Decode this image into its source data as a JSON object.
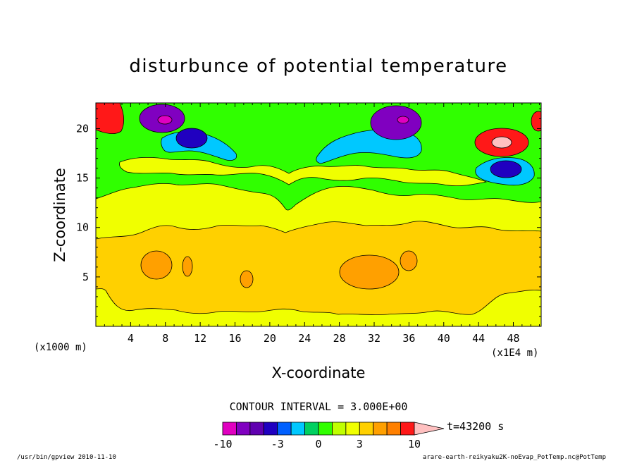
{
  "chart_data": {
    "type": "heatmap",
    "title": "disturbunce of potential temperature",
    "xlabel": "X-coordinate",
    "ylabel": "Z-coordinate",
    "x_unit_left": "(x1000 m)",
    "x_unit_right": "(x1E4 m)",
    "xlim": [
      0,
      51.2
    ],
    "ylim": [
      0,
      22.6
    ],
    "x_ticks": [
      "4",
      "8",
      "12",
      "16",
      "20",
      "24",
      "28",
      "32",
      "36",
      "40",
      "44",
      "48"
    ],
    "x_tick_values": [
      4,
      8,
      12,
      16,
      20,
      24,
      28,
      32,
      36,
      40,
      44,
      48
    ],
    "y_ticks": [
      "5",
      "10",
      "15",
      "20"
    ],
    "y_tick_values": [
      5,
      10,
      15,
      20
    ],
    "contour_interval_label": "CONTOUR INTERVAL = 3.000E+00",
    "time_label": "t=43200 s",
    "colorbar": {
      "levels": [
        -10,
        -8,
        -6,
        -4,
        -3,
        -2,
        -1,
        0,
        1,
        2,
        3,
        4,
        6,
        8,
        10
      ],
      "labels": [
        "-10",
        "-3",
        "0",
        "3",
        "10"
      ],
      "label_values": [
        -10,
        -3,
        0,
        3,
        10
      ],
      "colors": [
        "#e000c0",
        "#8000c0",
        "#6000b0",
        "#2000c0",
        "#0060ff",
        "#00c8ff",
        "#00d060",
        "#30ff00",
        "#c0ff00",
        "#f0ff00",
        "#ffd000",
        "#ffa000",
        "#ff8000",
        "#ff1818",
        "#ff7070",
        "#ffc0c0"
      ]
    },
    "band_colors": {
      "surface": "#f0ff00",
      "warm_layer": "#ffd000",
      "warm_core": "#ffa000",
      "cool_layer": "#30ff00",
      "blue": "#00c8ff",
      "dark_blue": "#2000c0",
      "purple": "#8000c0",
      "magenta": "#e000c0",
      "red": "#ff1818",
      "pink": "#ff7070",
      "light_pink": "#ffc0c0",
      "orange": "#ff8000"
    }
  },
  "footer": {
    "left": "/usr/bin/gpview 2010-11-10",
    "right": "arare-earth-reikyaku2K-noEvap_PotTemp.nc@PotTemp"
  }
}
